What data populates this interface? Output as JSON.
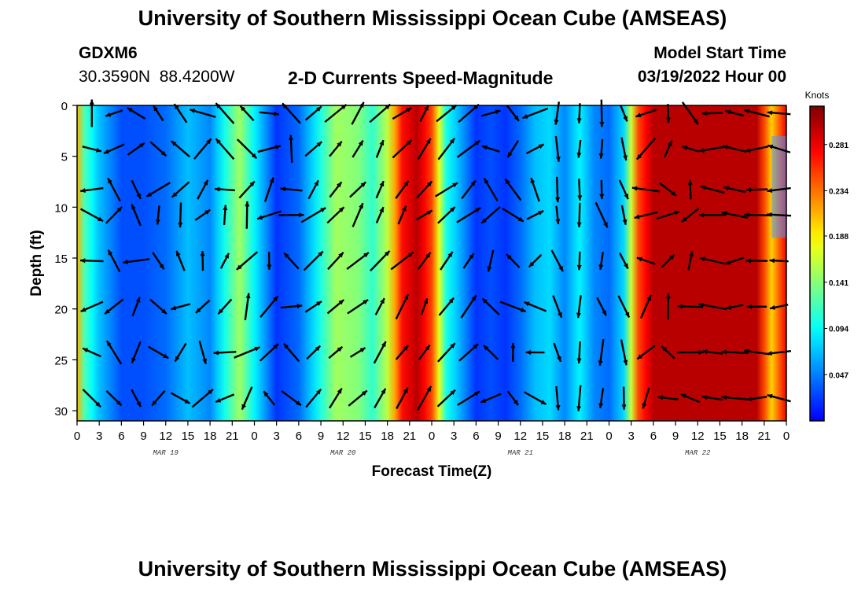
{
  "header": {
    "title": "University of Southern Mississippi Ocean Cube (AMSEAS)",
    "station_id": "GDXM6",
    "coordinates": "30.3590N  88.4200W",
    "plot_title": "2-D Currents Speed-Magnitude",
    "model_start_label": "Model Start Time",
    "model_start_value": "03/19/2022 Hour 00"
  },
  "footer": {
    "title": "University of Southern Mississippi Ocean Cube (AMSEAS)"
  },
  "chart_data": {
    "type": "heatmap",
    "title": "2-D Currents Speed-Magnitude",
    "xlabel": "Forecast Time(Z)",
    "ylabel": "Depth (ft)",
    "x_range_hours": [
      0,
      96
    ],
    "x_ticks": [
      "0",
      "3",
      "6",
      "9",
      "12",
      "15",
      "18",
      "21",
      "0",
      "3",
      "6",
      "9",
      "12",
      "15",
      "18",
      "21",
      "0",
      "3",
      "6",
      "9",
      "12",
      "15",
      "18",
      "21",
      "0",
      "3",
      "6",
      "9",
      "12",
      "15",
      "18",
      "21",
      "0"
    ],
    "day_labels": [
      "MAR 19",
      "MAR 20",
      "MAR 21",
      "MAR 22"
    ],
    "ylim": [
      0,
      31
    ],
    "y_ticks": [
      "0",
      "5",
      "10",
      "15",
      "20",
      "25",
      "30"
    ],
    "colorbar": {
      "label": "Knots",
      "range": [
        0,
        0.32
      ],
      "ticks": [
        "0.281",
        "0.234",
        "0.188",
        "0.141",
        "0.094",
        "0.047"
      ]
    },
    "arrow_depths_ft": [
      0,
      3.5,
      7.5,
      10,
      14.5,
      19,
      23.5,
      28
    ],
    "speed_profile_knots": {
      "hours": [
        0,
        1,
        3,
        6,
        9,
        12,
        15,
        18,
        20,
        22,
        24,
        27,
        30,
        32,
        35,
        38,
        40,
        42,
        44,
        46,
        48,
        50,
        52,
        54,
        56,
        58,
        60,
        62,
        64,
        66,
        68,
        70,
        72,
        74,
        76,
        78,
        80,
        82,
        84,
        86,
        88,
        90,
        92,
        94,
        96
      ],
      "speed": [
        0.21,
        0.12,
        0.07,
        0.03,
        0.03,
        0.04,
        0.07,
        0.05,
        0.1,
        0.15,
        0.09,
        0.02,
        0.04,
        0.08,
        0.15,
        0.14,
        0.11,
        0.16,
        0.27,
        0.3,
        0.25,
        0.1,
        0.06,
        0.02,
        0.03,
        0.02,
        0.04,
        0.07,
        0.08,
        0.05,
        0.09,
        0.05,
        0.04,
        0.08,
        0.25,
        0.3,
        0.3,
        0.3,
        0.3,
        0.3,
        0.3,
        0.3,
        0.3,
        0.2,
        0.28
      ]
    }
  }
}
